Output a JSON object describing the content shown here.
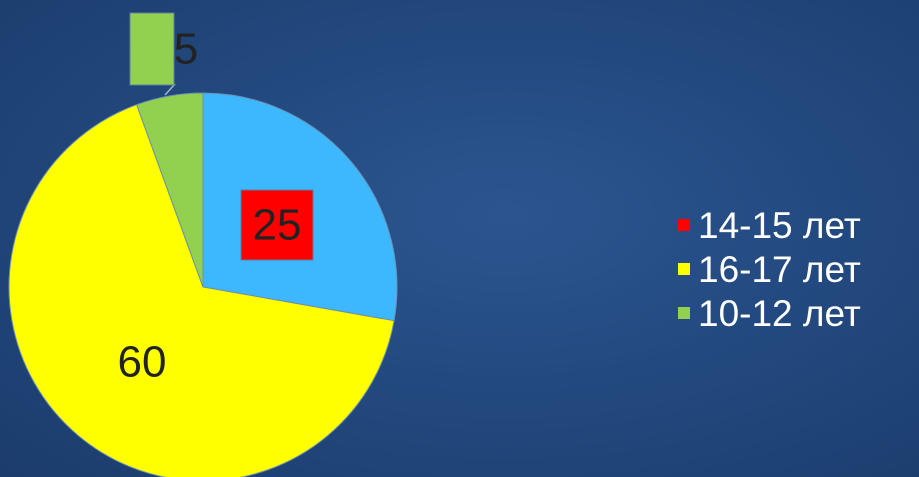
{
  "chart_data": {
    "type": "pie",
    "title": "",
    "legend_position": "right",
    "slices": [
      {
        "name": "14-15 лет",
        "value": 25,
        "label": "25",
        "color": "#3db8ff",
        "legend_color": "#ff0000",
        "label_box_color": "#ff0000"
      },
      {
        "name": "16-17 лет",
        "value": 60,
        "label": "60",
        "color": "#ffff00",
        "legend_color": "#ffff00",
        "label_box_color": ""
      },
      {
        "name": "10-12 лет",
        "value": 5,
        "label": "5",
        "color": "#92d050",
        "legend_color": "#92d050",
        "label_box_color": "#92d050"
      }
    ]
  }
}
